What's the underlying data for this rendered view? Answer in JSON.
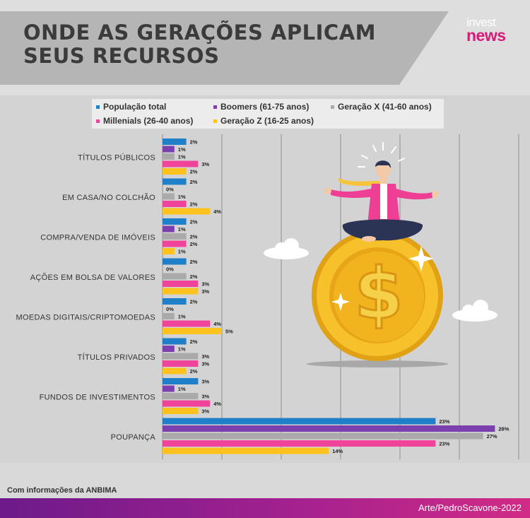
{
  "header": {
    "title": "ONDE AS GERAÇÕES APLICAM\nSEUS RECURSOS",
    "logo_top": "invest",
    "logo_bottom": "news"
  },
  "footer": {
    "source_note": "Com informações da ANBIMA",
    "credit": "Arte/PedroScavone-2022"
  },
  "illustration": {
    "coin_symbol": "$"
  },
  "chart_data": {
    "type": "bar",
    "orientation": "horizontal",
    "categories": [
      "TÍTULOS PÚBLICOS",
      "EM CASA/NO COLCHÃO",
      "COMPRA/VENDA DE IMÓVEIS",
      "AÇÕES EM BOLSA DE VALORES",
      "MOEDAS DIGITAIS/CRIPTOMOEDAS",
      "TÍTULOS PRIVADOS",
      "FUNDOS DE INVESTIMENTOS",
      "POUPANÇA"
    ],
    "series": [
      {
        "name": "População total",
        "color": "#1f7fc9",
        "values": [
          2,
          2,
          2,
          2,
          2,
          2,
          3,
          23
        ]
      },
      {
        "name": "Boomers (61-75 anos)",
        "color": "#7b3fae",
        "values": [
          1,
          0,
          1,
          0,
          0,
          1,
          1,
          28
        ]
      },
      {
        "name": "Geração X (41-60 anos)",
        "color": "#aaaaaa",
        "values": [
          1,
          1,
          2,
          2,
          1,
          3,
          3,
          27
        ]
      },
      {
        "name": "Millenials (26-40 anos)",
        "color": "#f0449a",
        "values": [
          3,
          2,
          2,
          3,
          4,
          3,
          4,
          23
        ]
      },
      {
        "name": "Geração Z (16-25 anos)",
        "color": "#fcc31e",
        "values": [
          2,
          4,
          1,
          3,
          5,
          2,
          3,
          14
        ]
      }
    ],
    "value_suffix": "%",
    "xlim": [
      0,
      30
    ],
    "grid": true,
    "legend_position": "top"
  }
}
